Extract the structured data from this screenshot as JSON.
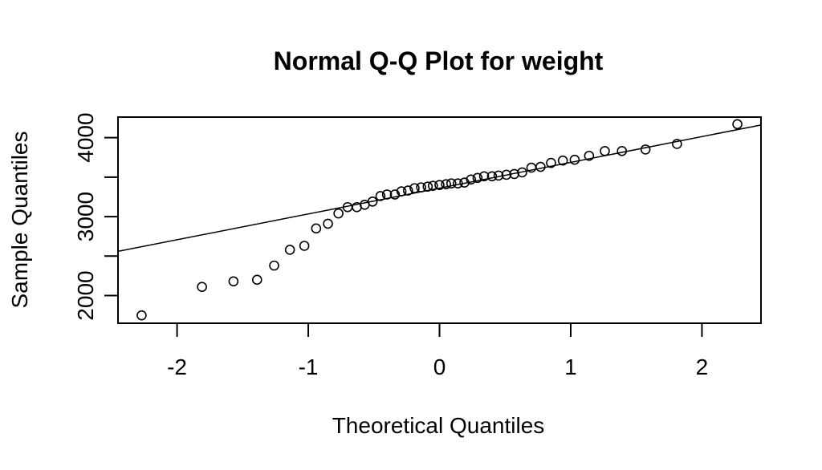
{
  "chart_data": {
    "type": "scatter",
    "title": "Normal Q-Q Plot for weight",
    "xlabel": "Theoretical Quantiles",
    "ylabel": "Sample Quantiles",
    "xlim": [
      -2.45,
      2.45
    ],
    "ylim": [
      1650,
      4260
    ],
    "x_ticks": [
      -2,
      -1,
      0,
      1,
      2
    ],
    "x_tick_labels": [
      "-2",
      "-1",
      "0",
      "1",
      "2"
    ],
    "y_ticks": [
      2000,
      2500,
      3000,
      3500,
      4000
    ],
    "y_tick_labels": [
      "2000",
      "",
      "3000",
      "",
      "4000"
    ],
    "grid": false,
    "legend": "none",
    "reference_line": {
      "x": [
        -2.45,
        2.45
      ],
      "y": [
        2560,
        4160
      ]
    },
    "series": [
      {
        "x": [
          -2.27,
          -1.81,
          -1.57,
          -1.39,
          -1.26,
          -1.14,
          -1.03,
          -0.94,
          -0.85,
          -0.77,
          -0.7,
          -0.63,
          -0.57,
          -0.51,
          -0.45,
          -0.4,
          -0.34,
          -0.29,
          -0.24,
          -0.19,
          -0.14,
          -0.09,
          -0.05,
          0.0,
          0.05,
          0.09,
          0.14,
          0.19,
          0.24,
          0.29,
          0.34,
          0.4,
          0.45,
          0.51,
          0.57,
          0.63,
          0.7,
          0.77,
          0.85,
          0.94,
          1.03,
          1.14,
          1.26,
          1.39,
          1.57,
          1.81,
          2.27
        ],
        "y": [
          1750,
          2110,
          2180,
          2200,
          2380,
          2580,
          2630,
          2850,
          2910,
          3040,
          3120,
          3120,
          3150,
          3190,
          3260,
          3280,
          3280,
          3320,
          3330,
          3360,
          3370,
          3380,
          3390,
          3400,
          3410,
          3420,
          3420,
          3430,
          3470,
          3490,
          3510,
          3510,
          3520,
          3530,
          3540,
          3560,
          3620,
          3630,
          3680,
          3710,
          3720,
          3770,
          3830,
          3830,
          3850,
          3920,
          4170
        ]
      }
    ]
  }
}
